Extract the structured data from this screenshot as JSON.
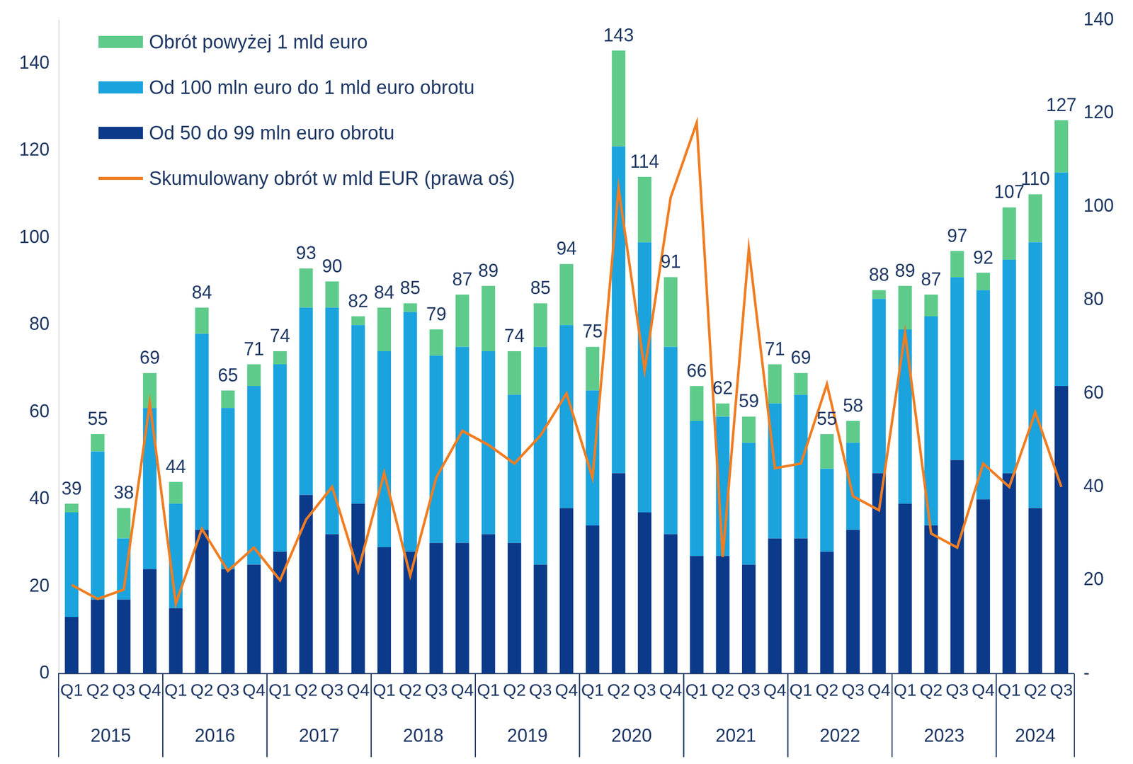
{
  "chart_data": {
    "type": "bar",
    "stacked": true,
    "legend": "upper left",
    "grid": false,
    "categories": [
      "Q1",
      "Q2",
      "Q3",
      "Q4",
      "Q1",
      "Q2",
      "Q3",
      "Q4",
      "Q1",
      "Q2",
      "Q3",
      "Q4",
      "Q1",
      "Q2",
      "Q3",
      "Q4",
      "Q1",
      "Q2",
      "Q3",
      "Q4",
      "Q1",
      "Q2",
      "Q3",
      "Q4",
      "Q1",
      "Q2",
      "Q3",
      "Q4",
      "Q1",
      "Q2",
      "Q3",
      "Q4",
      "Q1",
      "Q2",
      "Q3",
      "Q4",
      "Q1",
      "Q2",
      "Q3"
    ],
    "groups": [
      {
        "label": "2015",
        "size": 4
      },
      {
        "label": "2016",
        "size": 4
      },
      {
        "label": "2017",
        "size": 4
      },
      {
        "label": "2018",
        "size": 4
      },
      {
        "label": "2019",
        "size": 4
      },
      {
        "label": "2020",
        "size": 4
      },
      {
        "label": "2021",
        "size": 4
      },
      {
        "label": "2022",
        "size": 4
      },
      {
        "label": "2023",
        "size": 4
      },
      {
        "label": "2024",
        "size": 3
      }
    ],
    "series": [
      {
        "name": "Od 50 do 99 mln euro obrotu",
        "color": "#0B3A8A",
        "values": [
          13,
          17,
          17,
          24,
          15,
          33,
          24,
          25,
          28,
          41,
          32,
          39,
          29,
          28,
          30,
          30,
          32,
          30,
          25,
          38,
          34,
          46,
          37,
          32,
          27,
          27,
          25,
          31,
          31,
          28,
          33,
          46,
          39,
          34,
          49,
          40,
          46,
          38,
          66
        ]
      },
      {
        "name": "Od 100 mln euro do 1 mld euro obrotu",
        "color": "#1BA3DE",
        "values": [
          24,
          34,
          14,
          37,
          24,
          45,
          37,
          41,
          43,
          43,
          52,
          41,
          45,
          55,
          43,
          45,
          42,
          34,
          50,
          42,
          31,
          75,
          62,
          43,
          31,
          32,
          28,
          31,
          33,
          19,
          20,
          40,
          40,
          48,
          42,
          48,
          49,
          61,
          49
        ]
      },
      {
        "name": "Obrót powyżej 1 mld euro",
        "color": "#5FCB8B",
        "values": [
          2,
          4,
          7,
          8,
          5,
          6,
          4,
          5,
          3,
          9,
          6,
          2,
          10,
          2,
          6,
          12,
          15,
          10,
          10,
          14,
          10,
          22,
          15,
          16,
          8,
          3,
          6,
          9,
          5,
          8,
          5,
          2,
          10,
          5,
          6,
          4,
          12,
          11,
          12
        ]
      },
      {
        "name": "Skumulowany obrót w mld EUR (prawa oś)",
        "type": "line",
        "axis": "y2",
        "color": "#F07D22",
        "values": [
          19,
          16,
          18,
          58,
          15,
          31,
          22,
          27,
          20,
          33,
          40,
          22,
          43,
          21,
          42,
          52,
          49,
          45,
          51,
          60,
          42,
          104,
          65,
          102,
          118,
          25,
          91,
          44,
          45,
          62,
          38,
          35,
          73,
          30,
          27,
          45,
          40,
          56,
          40
        ]
      }
    ],
    "totals": [
      39,
      55,
      38,
      69,
      44,
      84,
      65,
      71,
      74,
      93,
      90,
      82,
      84,
      85,
      79,
      87,
      89,
      74,
      85,
      94,
      75,
      143,
      114,
      91,
      66,
      62,
      59,
      71,
      69,
      55,
      58,
      88,
      89,
      87,
      97,
      92,
      107,
      110,
      127
    ],
    "ylim": [
      0,
      150
    ],
    "yticks": [
      0,
      20,
      40,
      60,
      80,
      100,
      120,
      140
    ],
    "y2lim": [
      0,
      140
    ],
    "y2ticks": [
      {
        "value": 0,
        "label": "-"
      },
      20,
      40,
      60,
      80,
      100,
      120,
      140
    ]
  }
}
